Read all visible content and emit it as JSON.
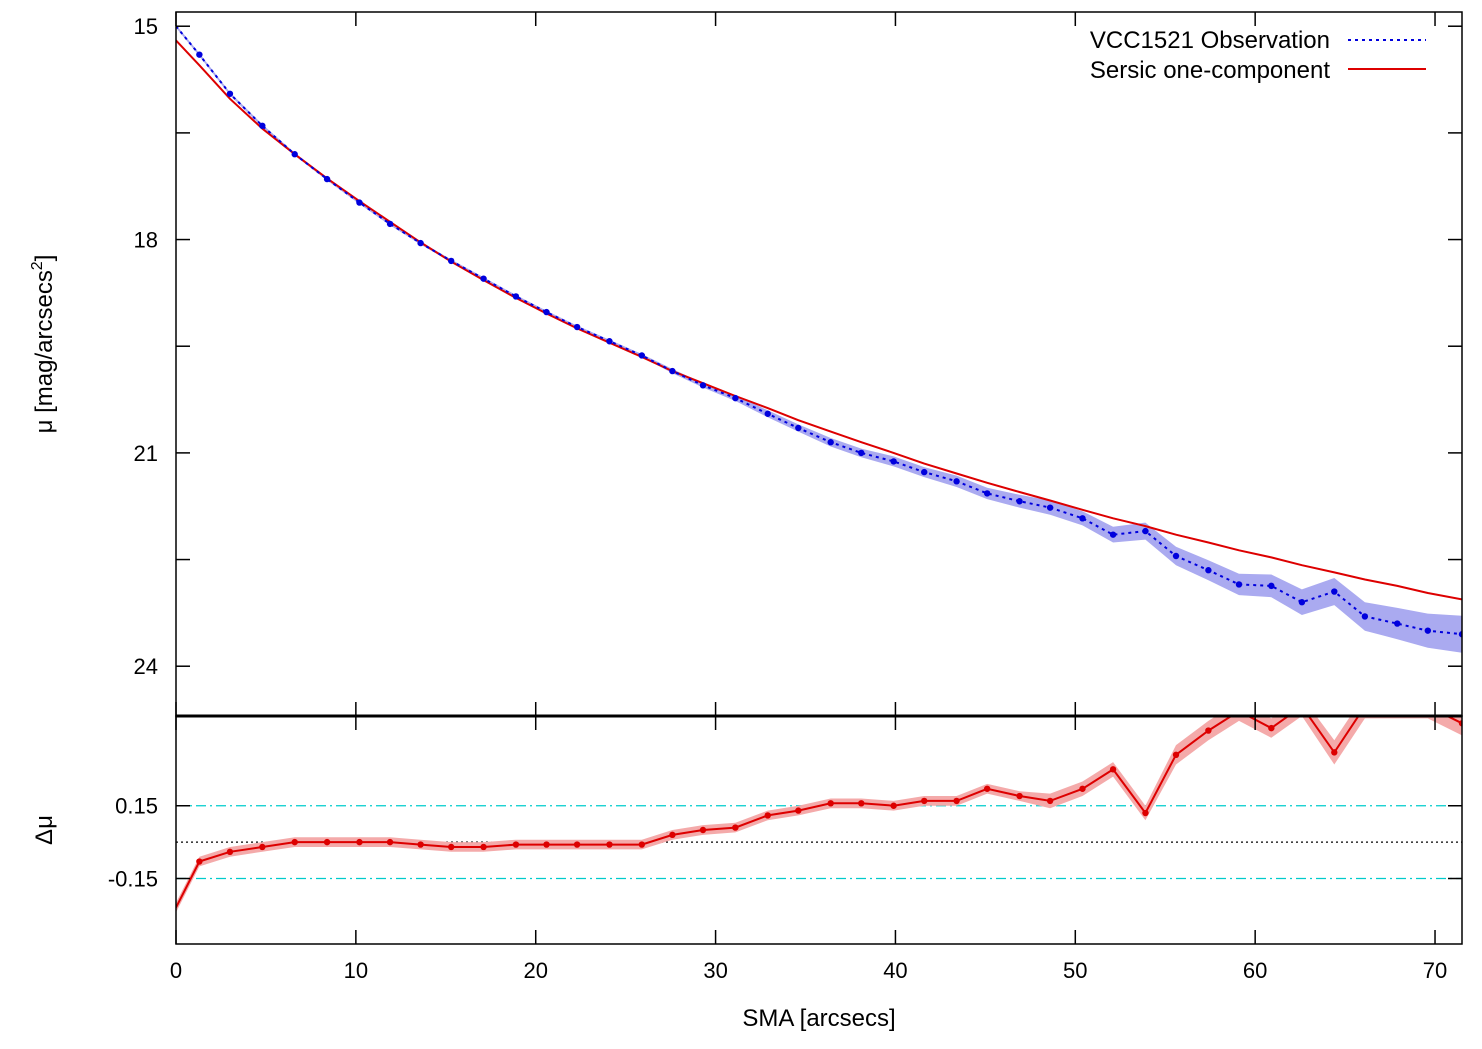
{
  "chart_data": [
    {
      "type": "line",
      "panel": "main",
      "xlabel": "",
      "ylabel": "μ [mag/arcsecs²]",
      "ylabel_main": "μ [mag/arcsecs",
      "ylabel_sup": "2",
      "ylabel_close": "]",
      "xlim": [
        0,
        71.5
      ],
      "ylim": [
        24.7,
        14.8
      ],
      "y_inverted": true,
      "yticks": [
        15,
        18,
        21,
        24
      ],
      "ytick_labels": [
        "15",
        "18",
        "21",
        "24"
      ],
      "y_minor_ticks": [
        16.5,
        19.5,
        22.5
      ],
      "legend_position": "top-right",
      "series": [
        {
          "name": "VCC1521 Observation",
          "style": "dotted-with-points",
          "color": "#0000dd",
          "band_color": "#aaaaf0",
          "x": [
            0,
            1.3,
            3.0,
            4.8,
            6.6,
            8.4,
            10.2,
            11.9,
            13.6,
            15.3,
            17.1,
            18.9,
            20.6,
            22.3,
            24.1,
            25.9,
            27.6,
            29.3,
            31.1,
            32.9,
            34.6,
            36.4,
            38.1,
            39.9,
            41.6,
            43.4,
            45.1,
            46.9,
            48.6,
            50.4,
            52.1,
            53.9,
            55.6,
            57.4,
            59.1,
            60.9,
            62.6,
            64.4,
            66.1,
            67.9,
            69.6,
            71.5
          ],
          "y": [
            15.0,
            15.4,
            15.95,
            16.4,
            16.8,
            17.15,
            17.48,
            17.78,
            18.05,
            18.3,
            18.55,
            18.8,
            19.02,
            19.23,
            19.43,
            19.63,
            19.85,
            20.05,
            20.23,
            20.45,
            20.65,
            20.85,
            21.0,
            21.12,
            21.27,
            21.4,
            21.57,
            21.68,
            21.77,
            21.92,
            22.15,
            22.1,
            22.45,
            22.65,
            22.85,
            22.87,
            23.1,
            22.95,
            23.3,
            23.4,
            23.5,
            23.55
          ],
          "band_half_width": [
            0.02,
            0.02,
            0.02,
            0.02,
            0.02,
            0.02,
            0.02,
            0.02,
            0.02,
            0.02,
            0.02,
            0.02,
            0.02,
            0.02,
            0.02,
            0.02,
            0.03,
            0.03,
            0.04,
            0.05,
            0.05,
            0.06,
            0.06,
            0.07,
            0.07,
            0.08,
            0.08,
            0.09,
            0.1,
            0.1,
            0.11,
            0.12,
            0.13,
            0.14,
            0.15,
            0.16,
            0.18,
            0.19,
            0.2,
            0.22,
            0.24,
            0.26
          ]
        },
        {
          "name": "Sersic one-component",
          "style": "solid",
          "color": "#dd0000",
          "x": [
            0,
            1.3,
            3.0,
            4.8,
            6.6,
            8.4,
            10.2,
            11.9,
            13.6,
            15.3,
            17.1,
            18.9,
            20.6,
            22.3,
            24.1,
            25.9,
            27.6,
            29.3,
            31.1,
            32.9,
            34.6,
            36.4,
            38.1,
            39.9,
            41.6,
            43.4,
            45.1,
            46.9,
            48.6,
            50.4,
            52.1,
            53.9,
            55.6,
            57.4,
            59.1,
            60.9,
            62.6,
            64.4,
            66.1,
            67.9,
            69.6,
            71.5
          ],
          "y": [
            15.2,
            15.55,
            16.02,
            16.44,
            16.8,
            17.14,
            17.46,
            17.75,
            18.04,
            18.31,
            18.57,
            18.82,
            19.04,
            19.25,
            19.45,
            19.65,
            19.85,
            20.02,
            20.2,
            20.37,
            20.54,
            20.7,
            20.85,
            21.0,
            21.15,
            21.29,
            21.42,
            21.55,
            21.67,
            21.8,
            21.92,
            22.03,
            22.15,
            22.26,
            22.37,
            22.47,
            22.58,
            22.68,
            22.78,
            22.87,
            22.97,
            23.06
          ]
        }
      ]
    },
    {
      "type": "line",
      "panel": "residual",
      "xlabel": "SMA [arcsecs]",
      "ylabel": "Δμ",
      "xlim": [
        0,
        71.5
      ],
      "ylim": [
        -0.42,
        0.52
      ],
      "xticks": [
        0,
        10,
        20,
        30,
        40,
        50,
        60,
        70
      ],
      "xtick_labels": [
        "0",
        "10",
        "20",
        "30",
        "40",
        "50",
        "60",
        "70"
      ],
      "yticks": [
        0.15,
        -0.15
      ],
      "ytick_labels": [
        "0.15",
        "-0.15"
      ],
      "reference_lines": [
        {
          "y": 0.15,
          "style": "dash-dot",
          "color": "#00cccc"
        },
        {
          "y": -0.15,
          "style": "dash-dot",
          "color": "#00cccc"
        },
        {
          "y": 0,
          "style": "dotted",
          "color": "#000000"
        }
      ],
      "series": [
        {
          "style": "solid-with-points",
          "color": "#dd0000",
          "band_color": "#f4aaaa",
          "x": [
            0,
            1.3,
            3.0,
            4.8,
            6.6,
            8.4,
            10.2,
            11.9,
            13.6,
            15.3,
            17.1,
            18.9,
            20.6,
            22.3,
            24.1,
            25.9,
            27.6,
            29.3,
            31.1,
            32.9,
            34.6,
            36.4,
            38.1,
            39.9,
            41.6,
            43.4,
            45.1,
            46.9,
            48.6,
            50.4,
            52.1,
            53.9,
            55.6,
            57.4,
            59.1,
            60.9,
            62.6,
            64.4,
            66.1,
            67.9,
            69.6,
            71.5
          ],
          "y": [
            -0.27,
            -0.08,
            -0.04,
            -0.02,
            0.0,
            0.0,
            0.0,
            0.0,
            -0.01,
            -0.02,
            -0.02,
            -0.01,
            -0.01,
            -0.01,
            -0.01,
            -0.01,
            0.03,
            0.05,
            0.06,
            0.11,
            0.13,
            0.16,
            0.16,
            0.15,
            0.17,
            0.17,
            0.22,
            0.19,
            0.17,
            0.22,
            0.3,
            0.12,
            0.36,
            0.46,
            0.54,
            0.47,
            0.56,
            0.37,
            0.56,
            0.56,
            0.56,
            0.49
          ],
          "band_half_width": [
            0.02,
            0.02,
            0.02,
            0.02,
            0.02,
            0.02,
            0.02,
            0.02,
            0.02,
            0.02,
            0.02,
            0.02,
            0.02,
            0.02,
            0.02,
            0.02,
            0.02,
            0.02,
            0.02,
            0.02,
            0.02,
            0.02,
            0.02,
            0.02,
            0.02,
            0.02,
            0.02,
            0.02,
            0.03,
            0.03,
            0.03,
            0.03,
            0.04,
            0.04,
            0.04,
            0.04,
            0.04,
            0.05,
            0.05,
            0.05,
            0.05,
            0.05
          ]
        }
      ]
    }
  ]
}
